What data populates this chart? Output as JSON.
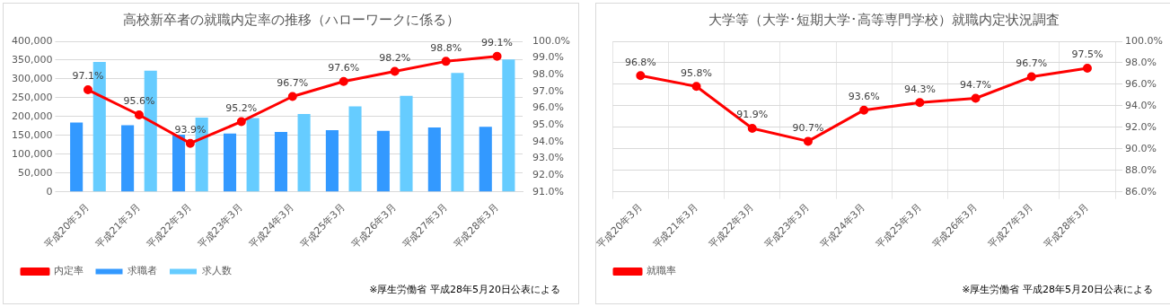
{
  "chart_data": [
    {
      "type": "bar",
      "title": "高校新卒者の就職内定率の推移（ハローワークに係る）",
      "categories": [
        "平成20年3月",
        "平成21年3月",
        "平成22年3月",
        "平成23年3月",
        "平成24年3月",
        "平成25年3月",
        "平成26年3月",
        "平成27年3月",
        "平成28年3月"
      ],
      "series": [
        {
          "name": "求職者",
          "color": "#3399ff",
          "values": [
            184000,
            177000,
            152000,
            155000,
            159000,
            164000,
            162000,
            171000,
            173000
          ]
        },
        {
          "name": "求人数",
          "color": "#66ccff",
          "values": [
            345000,
            322000,
            197000,
            196000,
            207000,
            227000,
            255000,
            316000,
            352000
          ]
        },
        {
          "name": "内定率",
          "type": "line",
          "axis": "y2",
          "color": "#ff0000",
          "values": [
            97.1,
            95.6,
            93.9,
            95.2,
            96.7,
            97.6,
            98.2,
            98.8,
            99.1
          ],
          "value_labels": [
            "97.1%",
            "95.6%",
            "93.9%",
            "95.2%",
            "96.7%",
            "97.6%",
            "98.2%",
            "98.8%",
            "99.1%"
          ]
        }
      ],
      "ylim": [
        0,
        400000
      ],
      "yticks": [
        {
          "value": 0,
          "label": "0"
        },
        {
          "value": 50000,
          "label": "50,000"
        },
        {
          "value": 100000,
          "label": "100,000"
        },
        {
          "value": 150000,
          "label": "150,000"
        },
        {
          "value": 200000,
          "label": "200,000"
        },
        {
          "value": 250000,
          "label": "250,000"
        },
        {
          "value": 300000,
          "label": "300,000"
        },
        {
          "value": 350000,
          "label": "350,000"
        },
        {
          "value": 400000,
          "label": "400,000"
        }
      ],
      "y2lim": [
        91,
        100
      ],
      "y2ticks": [
        {
          "value": 91,
          "label": "91.0%"
        },
        {
          "value": 92,
          "label": "92.0%"
        },
        {
          "value": 93,
          "label": "93.0%"
        },
        {
          "value": 94,
          "label": "94.0%"
        },
        {
          "value": 95,
          "label": "95.0%"
        },
        {
          "value": 96,
          "label": "96.0%"
        },
        {
          "value": 97,
          "label": "97.0%"
        },
        {
          "value": 98,
          "label": "98.0%"
        },
        {
          "value": 99,
          "label": "99.0%"
        },
        {
          "value": 100,
          "label": "100.0%"
        }
      ],
      "grid": "y",
      "legend": "bottom",
      "marker": "circle",
      "annotations": [
        "※厚生労働省  平成28年5月20日公表による"
      ]
    },
    {
      "type": "line",
      "title": "大学等（大学･短期大学･高等専門学校）就職内定状況調査",
      "categories": [
        "平成20年3月",
        "平成21年3月",
        "平成22年3月",
        "平成23年3月",
        "平成24年3月",
        "平成25年3月",
        "平成26年3月",
        "平成27年3月",
        "平成28年3月"
      ],
      "series": [
        {
          "name": "就職率",
          "axis": "y2",
          "color": "#ff0000",
          "values": [
            96.8,
            95.8,
            91.9,
            90.7,
            93.6,
            94.3,
            94.7,
            96.7,
            97.5
          ],
          "value_labels": [
            "96.8%",
            "95.8%",
            "91.9%",
            "90.7%",
            "93.6%",
            "94.3%",
            "94.7%",
            "96.7%",
            "97.5%"
          ]
        }
      ],
      "y2lim": [
        86,
        100
      ],
      "y2ticks": [
        {
          "value": 86,
          "label": "86.0%"
        },
        {
          "value": 88,
          "label": "88.0%"
        },
        {
          "value": 90,
          "label": "90.0%"
        },
        {
          "value": 92,
          "label": "92.0%"
        },
        {
          "value": 94,
          "label": "94.0%"
        },
        {
          "value": 96,
          "label": "96.0%"
        },
        {
          "value": 98,
          "label": "98.0%"
        },
        {
          "value": 100,
          "label": "100.0%"
        }
      ],
      "grid": true,
      "legend": "bottom",
      "marker": "circle",
      "annotations": [
        "※厚生労働省  平成28年5月20日公表による"
      ]
    }
  ]
}
